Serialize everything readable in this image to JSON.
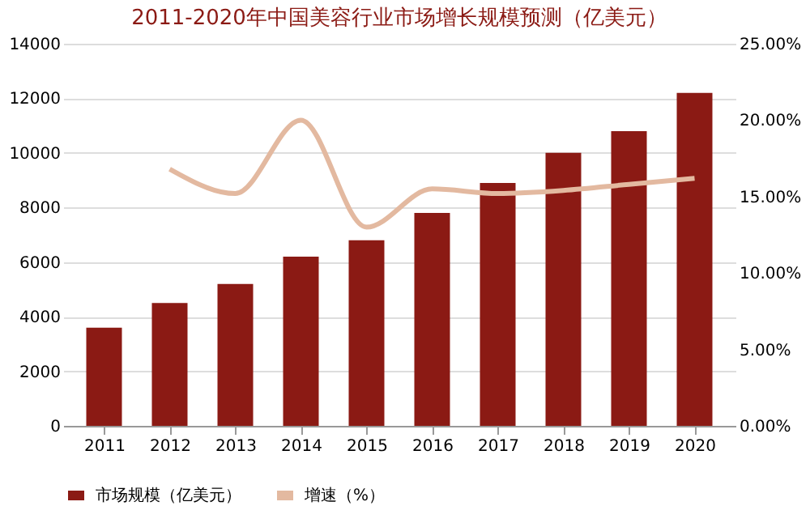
{
  "chart_data": {
    "type": "bar",
    "title": "2011-2020年中国美容行业市场增长规模预测（亿美元）",
    "categories": [
      "2011",
      "2012",
      "2013",
      "2014",
      "2015",
      "2016",
      "2017",
      "2018",
      "2019",
      "2020"
    ],
    "series": [
      {
        "name": "市场规模（亿美元）",
        "color": "#8b1a14",
        "values": [
          3600,
          4500,
          5200,
          6200,
          6800,
          7800,
          8900,
          10000,
          10800,
          12200
        ]
      },
      {
        "name": "增速（%）",
        "color": "#e3b9a0",
        "type": "line",
        "axis": "y2",
        "values": [
          null,
          16.8,
          15.2,
          20,
          13,
          15.5,
          15.2,
          15.4,
          15.8,
          16.2
        ]
      }
    ],
    "ylim": [
      0,
      14000
    ],
    "yticks": [
      0,
      2000,
      4000,
      6000,
      8000,
      10000,
      12000,
      14000
    ],
    "y2lim": [
      0,
      25
    ],
    "y2ticks": [
      {
        "value": 0,
        "label": "0.00%"
      },
      {
        "value": 5,
        "label": "5.00%"
      },
      {
        "value": 10,
        "label": "10.00%"
      },
      {
        "value": 15,
        "label": "15.00%"
      },
      {
        "value": 20,
        "label": "20.00%"
      },
      {
        "value": 25,
        "label": "25.00%"
      }
    ],
    "grid": "y",
    "legend": "bottom"
  }
}
